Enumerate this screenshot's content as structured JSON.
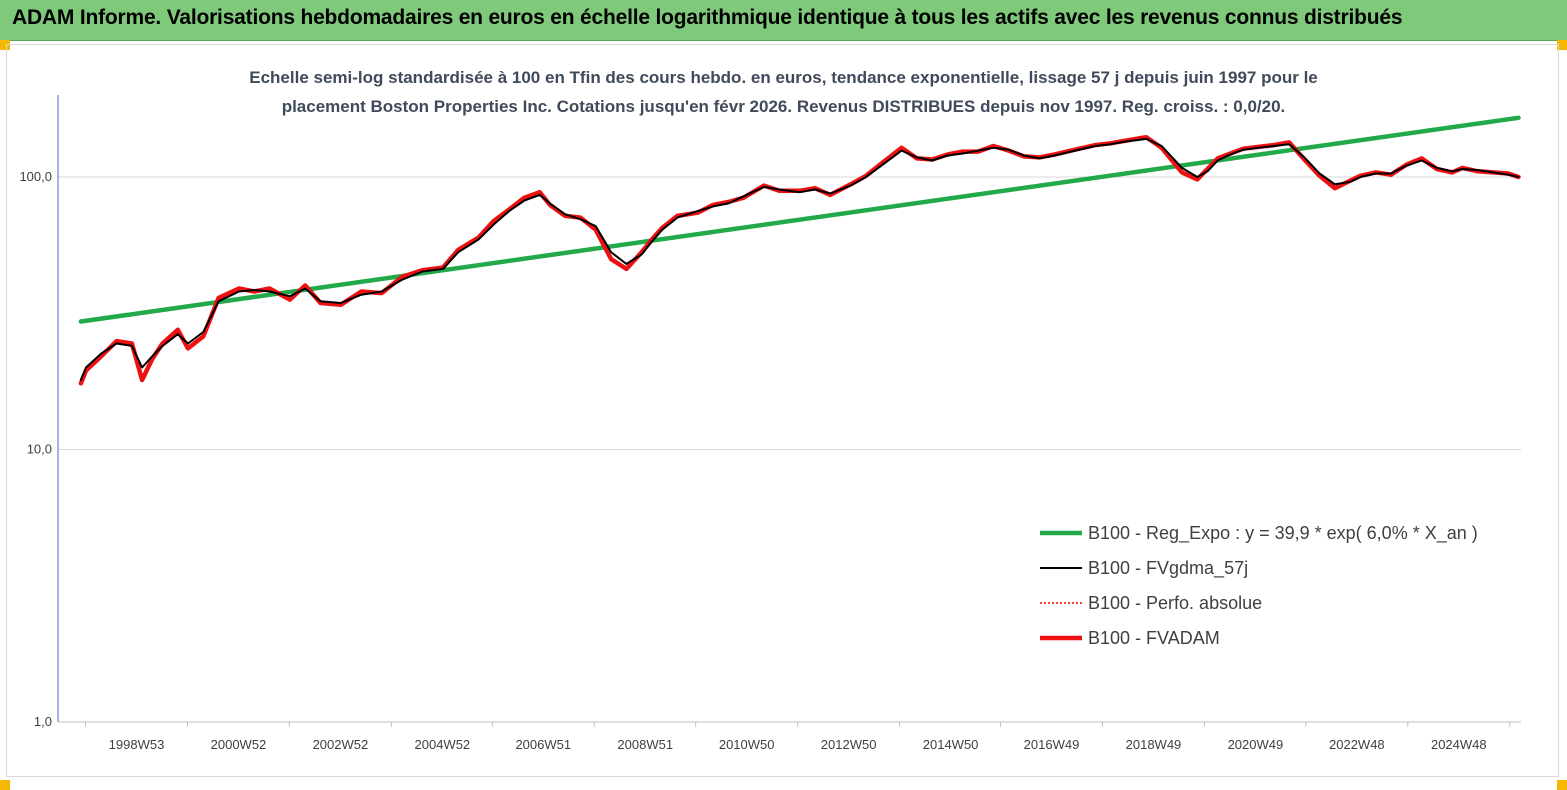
{
  "header": {
    "title": "ADAM Informe. Valorisations hebdomadaires en euros en échelle logarithmique identique à tous les actifs avec les revenus connus distribués",
    "background": "#7fc97a",
    "corner_color": "#f5b800"
  },
  "chart_data": {
    "type": "line",
    "title_line1": "Echelle semi-log standardisée à 100 en Tfin des cours hebdo. en euros, tendance exponentielle, lissage 57 j depuis juin 1997 pour le",
    "title_line2": "placement Boston Properties Inc. Cotations jusqu'en févr 2026. Revenus DISTRIBUES depuis nov 1997. Reg. croiss. : 0,0/20.",
    "y_scale": "log",
    "ylim": [
      1,
      200
    ],
    "y_ticks": [
      {
        "value": 1,
        "label": "1,0"
      },
      {
        "value": 10,
        "label": "10,0"
      },
      {
        "value": 100,
        "label": "100,0"
      }
    ],
    "xlim": [
      1997.45,
      2026.15
    ],
    "x_ticks": [
      {
        "value": 1998.99,
        "label": "1998W53"
      },
      {
        "value": 2000.99,
        "label": "2000W52"
      },
      {
        "value": 2002.99,
        "label": "2002W52"
      },
      {
        "value": 2004.99,
        "label": "2004W52"
      },
      {
        "value": 2006.97,
        "label": "2006W51"
      },
      {
        "value": 2008.97,
        "label": "2008W51"
      },
      {
        "value": 2010.96,
        "label": "2010W50"
      },
      {
        "value": 2012.96,
        "label": "2012W50"
      },
      {
        "value": 2014.96,
        "label": "2014W50"
      },
      {
        "value": 2016.94,
        "label": "2016W49"
      },
      {
        "value": 2018.94,
        "label": "2018W49"
      },
      {
        "value": 2020.94,
        "label": "2020W49"
      },
      {
        "value": 2022.93,
        "label": "2022W48"
      },
      {
        "value": 2024.93,
        "label": "2024W48"
      }
    ],
    "grid": "horizontal",
    "legend_position": "bottom-right",
    "series": [
      {
        "name": "B100 - Reg_Expo : y = 39,9 *  exp( 6,0% *  X_an )",
        "color": "#22aa4a",
        "style": "thick",
        "x": [
          1997.9,
          2026.1
        ],
        "y": [
          29.5,
          165
        ]
      },
      {
        "name": "B100 - FVgdma_57j",
        "color": "#000000",
        "style": "thin",
        "x": [
          1997.9,
          1998.0,
          1998.3,
          1998.6,
          1998.9,
          1999.1,
          1999.3,
          1999.5,
          1999.8,
          2000.0,
          2000.3,
          2000.6,
          2001.0,
          2001.3,
          2001.6,
          2002.0,
          2002.3,
          2002.6,
          2003.0,
          2003.4,
          2003.8,
          2004.2,
          2004.6,
          2005.0,
          2005.3,
          2005.7,
          2006.0,
          2006.3,
          2006.6,
          2006.9,
          2007.1,
          2007.4,
          2007.7,
          2008.0,
          2008.3,
          2008.6,
          2008.9,
          2009.1,
          2009.3,
          2009.6,
          2010.0,
          2010.3,
          2010.6,
          2010.9,
          2011.3,
          2011.6,
          2012.0,
          2012.3,
          2012.6,
          2013.0,
          2013.3,
          2013.6,
          2014.0,
          2014.3,
          2014.6,
          2014.9,
          2015.2,
          2015.5,
          2015.8,
          2016.1,
          2016.4,
          2016.7,
          2017.0,
          2017.4,
          2017.8,
          2018.1,
          2018.4,
          2018.8,
          2019.1,
          2019.5,
          2019.8,
          2020.0,
          2020.2,
          2020.4,
          2020.7,
          2021.0,
          2021.3,
          2021.6,
          2021.9,
          2022.2,
          2022.5,
          2022.8,
          2023.0,
          2023.3,
          2023.6,
          2023.9,
          2024.2,
          2024.5,
          2024.8,
          2025.0,
          2025.3,
          2025.6,
          2025.9,
          2026.1
        ],
        "y": [
          18.0,
          20.0,
          22.5,
          24.5,
          24.0,
          20.0,
          22.0,
          24.0,
          26.5,
          24.5,
          27.0,
          35.0,
          38.0,
          38.5,
          38.0,
          36.5,
          39.0,
          35.0,
          34.5,
          37.0,
          38.0,
          42.0,
          45.0,
          46.0,
          53.0,
          59.0,
          67.0,
          75.0,
          82.0,
          86.0,
          80.0,
          73.0,
          70.0,
          66.0,
          53.0,
          48.0,
          52.0,
          58.0,
          64.0,
          71.0,
          75.0,
          78.0,
          80.0,
          85.0,
          92.0,
          90.0,
          88.0,
          90.0,
          87.0,
          93.0,
          100.0,
          110.0,
          125.0,
          118.0,
          115.0,
          120.0,
          122.0,
          125.0,
          128.0,
          126.0,
          120.0,
          117.0,
          120.0,
          125.0,
          130.0,
          132.0,
          135.0,
          138.0,
          130.0,
          108.0,
          100.0,
          105.0,
          115.0,
          120.0,
          126.0,
          128.0,
          130.0,
          132.0,
          118.0,
          103.0,
          94.0,
          96.0,
          100.0,
          103.0,
          103.0,
          110.0,
          115.0,
          108.0,
          105.0,
          107.0,
          106.0,
          104.0,
          102.0,
          100.0
        ]
      },
      {
        "name": "B100 - Perfo. absolue",
        "color": "#ff0000",
        "style": "dotted",
        "x": [],
        "y": []
      },
      {
        "name": "B100 - FVADAM",
        "color": "#ee1111",
        "style": "thick",
        "x": [
          1997.9,
          1998.0,
          1998.3,
          1998.6,
          1998.9,
          1999.1,
          1999.3,
          1999.5,
          1999.8,
          2000.0,
          2000.3,
          2000.6,
          2001.0,
          2001.3,
          2001.6,
          2002.0,
          2002.3,
          2002.6,
          2003.0,
          2003.4,
          2003.8,
          2004.2,
          2004.6,
          2005.0,
          2005.3,
          2005.7,
          2006.0,
          2006.3,
          2006.6,
          2006.9,
          2007.1,
          2007.4,
          2007.7,
          2008.0,
          2008.3,
          2008.6,
          2008.9,
          2009.1,
          2009.3,
          2009.6,
          2010.0,
          2010.3,
          2010.6,
          2010.9,
          2011.3,
          2011.6,
          2012.0,
          2012.3,
          2012.6,
          2013.0,
          2013.3,
          2013.6,
          2014.0,
          2014.3,
          2014.6,
          2014.9,
          2015.2,
          2015.5,
          2015.8,
          2016.1,
          2016.4,
          2016.7,
          2017.0,
          2017.4,
          2017.8,
          2018.1,
          2018.4,
          2018.8,
          2019.1,
          2019.5,
          2019.8,
          2020.0,
          2020.2,
          2020.4,
          2020.7,
          2021.0,
          2021.3,
          2021.6,
          2021.9,
          2022.2,
          2022.5,
          2022.8,
          2023.0,
          2023.3,
          2023.6,
          2023.9,
          2024.2,
          2024.5,
          2024.8,
          2025.0,
          2025.3,
          2025.6,
          2025.9,
          2026.1
        ],
        "y": [
          17.5,
          19.5,
          22.0,
          25.0,
          24.5,
          18.0,
          21.5,
          24.5,
          27.5,
          23.5,
          26.0,
          36.0,
          39.0,
          38.0,
          39.0,
          35.5,
          40.0,
          34.5,
          34.0,
          38.0,
          37.5,
          43.0,
          45.5,
          46.5,
          54.0,
          60.0,
          69.0,
          76.0,
          84.0,
          88.0,
          79.0,
          72.0,
          71.0,
          64.0,
          50.0,
          46.0,
          53.0,
          59.0,
          65.0,
          72.0,
          74.0,
          79.0,
          81.0,
          84.0,
          93.0,
          89.0,
          89.0,
          91.0,
          86.0,
          94.0,
          101.0,
          112.0,
          128.0,
          117.0,
          116.0,
          121.0,
          124.0,
          124.0,
          130.0,
          125.0,
          119.0,
          118.0,
          121.0,
          126.0,
          131.0,
          133.0,
          136.0,
          140.0,
          128.0,
          104.0,
          98.0,
          107.0,
          117.0,
          121.0,
          127.0,
          129.0,
          131.0,
          134.0,
          116.0,
          101.0,
          91.0,
          97.0,
          101.0,
          104.0,
          102.0,
          111.0,
          117.0,
          107.0,
          104.0,
          108.0,
          105.0,
          104.0,
          103.0,
          100.0
        ]
      }
    ]
  }
}
